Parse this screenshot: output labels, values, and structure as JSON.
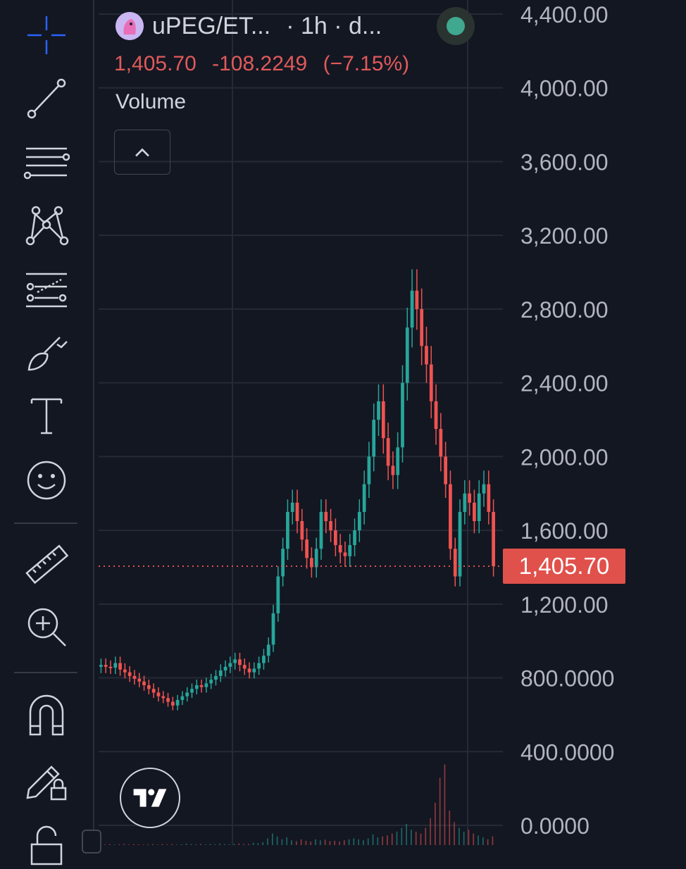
{
  "header": {
    "symbol": "uPEG/ET...",
    "interval": "· 1h · d...",
    "last_price": "1,405.70",
    "change": "-108.2249",
    "change_pct": "(−7.15%)",
    "volume_label": "Volume"
  },
  "toolbar": [
    {
      "name": "crosshair-tool",
      "icon": "crosshair-icon"
    },
    {
      "name": "trend-line-tool",
      "icon": "trend-line-icon"
    },
    {
      "name": "horizontal-lines-tool",
      "icon": "fib-lines-icon"
    },
    {
      "name": "pattern-tool",
      "icon": "xabcd-pattern-icon"
    },
    {
      "name": "prediction-tool",
      "icon": "forecast-icon"
    },
    {
      "name": "brush-tool",
      "icon": "brush-icon"
    },
    {
      "name": "text-tool",
      "icon": "text-icon"
    },
    {
      "name": "emoji-tool",
      "icon": "smiley-icon"
    },
    {
      "name": "measure-tool",
      "icon": "ruler-icon"
    },
    {
      "name": "zoom-tool",
      "icon": "zoom-in-icon"
    },
    {
      "name": "magnet-tool",
      "icon": "magnet-icon"
    },
    {
      "name": "lock-drawings-tool",
      "icon": "pencil-lock-icon"
    },
    {
      "name": "lock-tool",
      "icon": "lock-icon"
    }
  ],
  "price_tag": "1,405.70",
  "colors": {
    "up": "#26a69a",
    "down": "#ef5350",
    "accent": "#2962ff",
    "price_line": "#e0514c"
  },
  "chart_data": {
    "type": "candlestick",
    "y_axis_labels": [
      "4,400.00",
      "4,000.00",
      "3,600.00",
      "3,200.00",
      "2,800.00",
      "2,400.00",
      "2,000.00",
      "1,600.00",
      "1,200.00",
      "800.0000",
      "400.0000",
      "0.0000"
    ],
    "y_axis_values": [
      4400,
      4000,
      3600,
      3200,
      2800,
      2400,
      2000,
      1600,
      1200,
      800,
      400,
      0
    ],
    "current_price": 1405.7,
    "price_close_series": [
      870,
      860,
      855,
      880,
      845,
      830,
      810,
      795,
      780,
      760,
      740,
      720,
      700,
      690,
      670,
      650,
      680,
      700,
      720,
      740,
      760,
      750,
      770,
      790,
      810,
      840,
      860,
      880,
      900,
      870,
      850,
      830,
      850,
      880,
      920,
      980,
      1150,
      1350,
      1500,
      1700,
      1750,
      1650,
      1550,
      1450,
      1400,
      1500,
      1700,
      1650,
      1600,
      1520,
      1480,
      1460,
      1520,
      1600,
      1700,
      1850,
      2000,
      2200,
      2300,
      2100,
      1950,
      1900,
      2050,
      2400,
      2700,
      2900,
      2800,
      2600,
      2500,
      2300,
      2150,
      2000,
      1850,
      1500,
      1350,
      1700,
      1800,
      1750,
      1650,
      1800,
      1850,
      1700,
      1405.7
    ],
    "volume_series": [
      4,
      3,
      5,
      3,
      4,
      6,
      3,
      5,
      4,
      3,
      4,
      5,
      3,
      6,
      4,
      5,
      3,
      4,
      8,
      5,
      4,
      6,
      3,
      5,
      4,
      7,
      5,
      4,
      6,
      8,
      5,
      6,
      12,
      10,
      15,
      35,
      60,
      45,
      30,
      40,
      25,
      20,
      30,
      22,
      18,
      30,
      25,
      28,
      20,
      22,
      18,
      25,
      30,
      35,
      30,
      25,
      35,
      55,
      40,
      45,
      50,
      60,
      70,
      90,
      110,
      80,
      70,
      60,
      90,
      140,
      220,
      350,
      420,
      180,
      120,
      90,
      70,
      80,
      60,
      50,
      40,
      30,
      45
    ],
    "volume_scale_max": 1100
  }
}
